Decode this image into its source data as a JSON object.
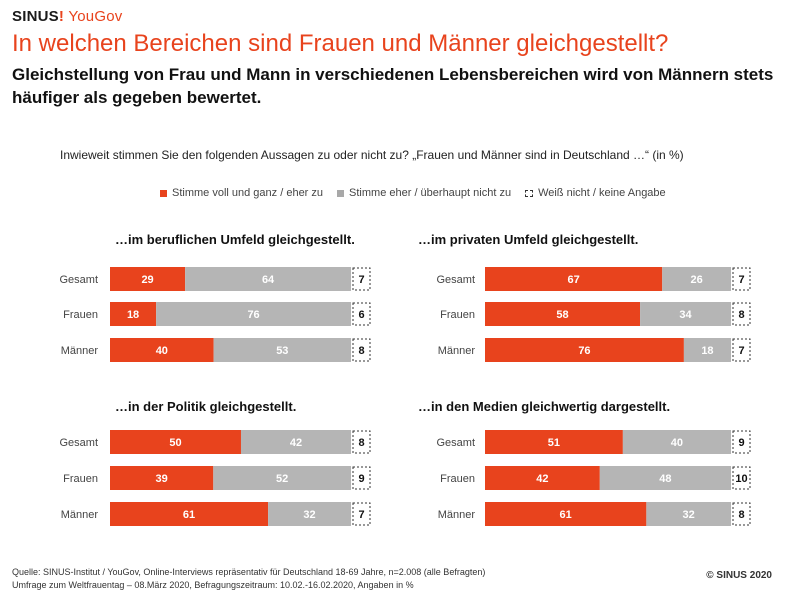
{
  "header": {
    "logo_sinus": "SINUS",
    "logo_bang": "!",
    "logo_yougov": "YouGov",
    "title": "In welchen Bereichen sind Frauen und Männer gleichgestellt?",
    "subtitle": "Gleichstellung von Frau und Mann in verschiedenen Lebensbereichen wird von Männern stets häufiger als gegeben bewertet.",
    "question": "Inwieweit stimmen Sie den folgenden Aussagen zu oder nicht zu? „Frauen und Männer sind in Deutschland …“ (in %)"
  },
  "legend": [
    {
      "label": "Stimme voll und ganz / eher zu",
      "color": "#e8431d"
    },
    {
      "label": "Stimme eher / überhaupt nicht zu",
      "color": "#a8a8a8"
    },
    {
      "label": "Weiß nicht / keine Angabe",
      "color": "#ffffff"
    }
  ],
  "colors": {
    "agree": "#e8431d",
    "disagree": "#b5b5b5",
    "dontknow": "#ffffff"
  },
  "chart_data": [
    {
      "type": "bar",
      "stacked": true,
      "orientation": "horizontal",
      "title": "…im beruflichen Umfeld gleichgestellt.",
      "categories": [
        "Gesamt",
        "Frauen",
        "Männer"
      ],
      "series": [
        {
          "name": "Stimme voll und ganz / eher zu",
          "values": [
            29,
            18,
            40
          ]
        },
        {
          "name": "Stimme eher / überhaupt nicht zu",
          "values": [
            64,
            76,
            53
          ]
        },
        {
          "name": "Weiß nicht / keine Angabe",
          "values": [
            7,
            6,
            8
          ]
        }
      ]
    },
    {
      "type": "bar",
      "stacked": true,
      "orientation": "horizontal",
      "title": "…im privaten Umfeld gleichgestellt.",
      "categories": [
        "Gesamt",
        "Frauen",
        "Männer"
      ],
      "series": [
        {
          "name": "Stimme voll und ganz / eher zu",
          "values": [
            67,
            58,
            76
          ]
        },
        {
          "name": "Stimme eher / überhaupt nicht zu",
          "values": [
            26,
            34,
            18
          ]
        },
        {
          "name": "Weiß nicht / keine Angabe",
          "values": [
            7,
            8,
            7
          ]
        }
      ]
    },
    {
      "type": "bar",
      "stacked": true,
      "orientation": "horizontal",
      "title": "…in der Politik gleichgestellt.",
      "categories": [
        "Gesamt",
        "Frauen",
        "Männer"
      ],
      "series": [
        {
          "name": "Stimme voll und ganz / eher zu",
          "values": [
            50,
            39,
            61
          ]
        },
        {
          "name": "Stimme eher / überhaupt nicht zu",
          "values": [
            42,
            52,
            32
          ]
        },
        {
          "name": "Weiß nicht / keine Angabe",
          "values": [
            8,
            9,
            7
          ]
        }
      ]
    },
    {
      "type": "bar",
      "stacked": true,
      "orientation": "horizontal",
      "title": "…in den Medien gleichwertig dargestellt.",
      "categories": [
        "Gesamt",
        "Frauen",
        "Männer"
      ],
      "series": [
        {
          "name": "Stimme voll und ganz / eher zu",
          "values": [
            51,
            42,
            61
          ]
        },
        {
          "name": "Stimme eher / überhaupt nicht zu",
          "values": [
            40,
            48,
            32
          ]
        },
        {
          "name": "Weiß nicht / keine Angabe",
          "values": [
            9,
            10,
            8
          ]
        }
      ]
    }
  ],
  "footer": {
    "source_line1": "Quelle: SINUS-Institut / YouGov, Online-Interviews repräsentativ für Deutschland 18-69 Jahre, n=2.008 (alle Befragten)",
    "source_line2": "Umfrage zum Weltfrauentag – 08.März 2020, Befragungszeitraum: 10.02.-16.02.2020, Angaben in %",
    "copyright": "© SINUS 2020"
  }
}
